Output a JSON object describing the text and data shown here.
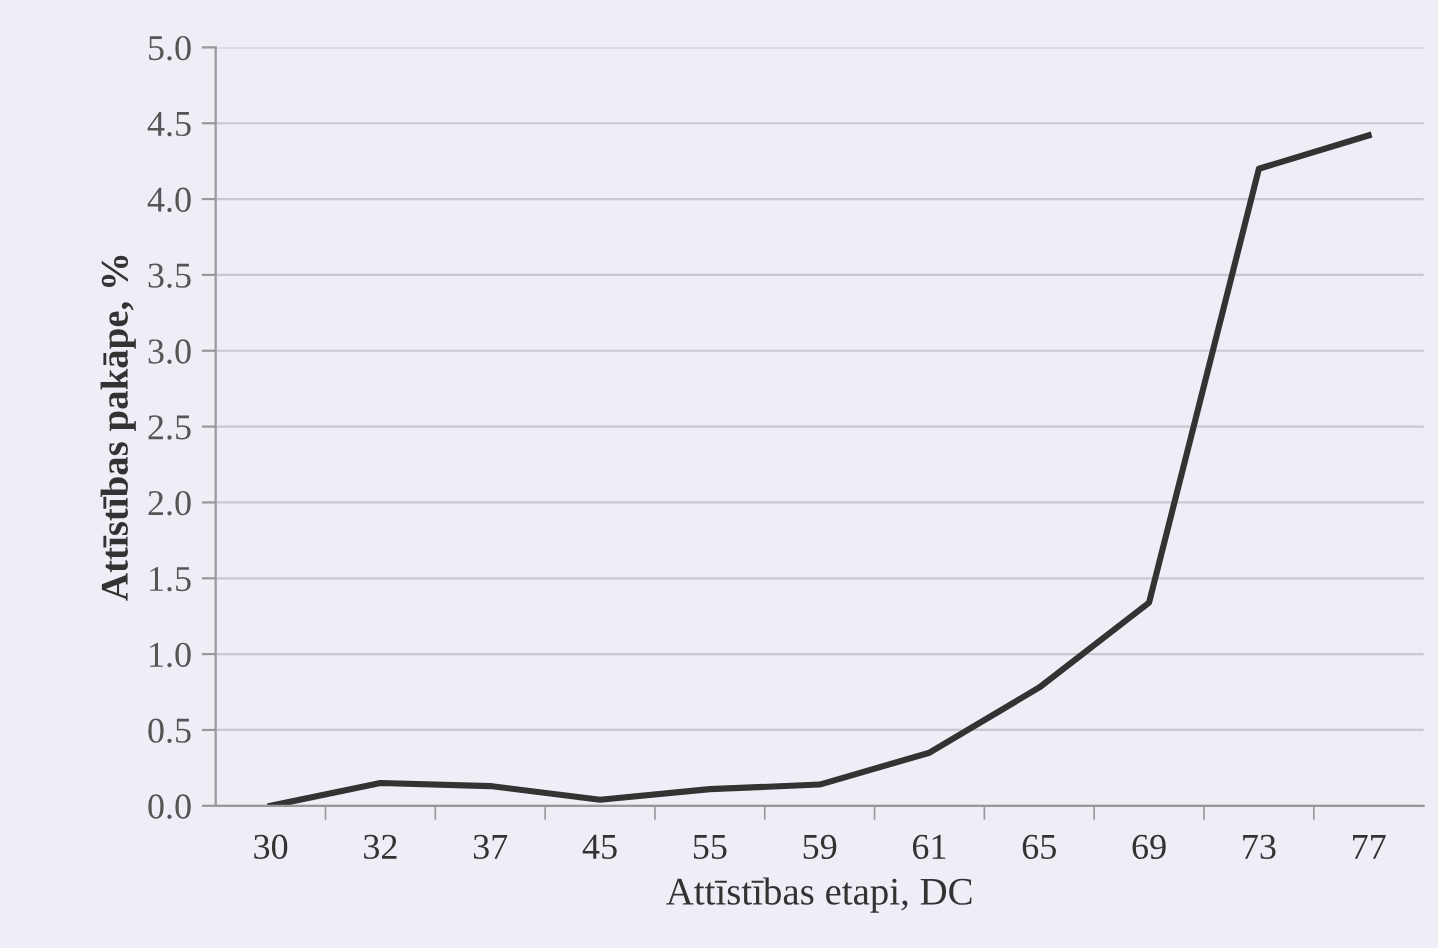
{
  "chart_data": {
    "type": "line",
    "xlabel": "Attīstības etapi, DC",
    "ylabel": "Attīstības pakāpe, %",
    "categories": [
      "30",
      "32",
      "37",
      "45",
      "55",
      "59",
      "61",
      "65",
      "69",
      "73",
      "77"
    ],
    "series": [
      {
        "color": "#333333",
        "values": [
          0.0,
          0.15,
          0.13,
          0.04,
          0.11,
          0.14,
          0.35,
          0.78,
          1.34,
          4.2,
          4.42
        ]
      }
    ],
    "ylim": [
      0,
      5
    ],
    "yticks": [
      {
        "value": 0,
        "label": "0.0"
      },
      {
        "value": 0.5,
        "label": "0.5"
      },
      {
        "value": 1,
        "label": "1.0"
      },
      {
        "value": 1.5,
        "label": "1.5"
      },
      {
        "value": 2,
        "label": "2.0"
      },
      {
        "value": 2.5,
        "label": "2.5"
      },
      {
        "value": 3,
        "label": "3.0"
      },
      {
        "value": 3.5,
        "label": "3.5"
      },
      {
        "value": 4,
        "label": "4.0"
      },
      {
        "value": 4.5,
        "label": "4.5"
      },
      {
        "value": 5,
        "label": "5.0"
      }
    ],
    "grid": "y",
    "marker": "none",
    "line_style": "solid"
  }
}
